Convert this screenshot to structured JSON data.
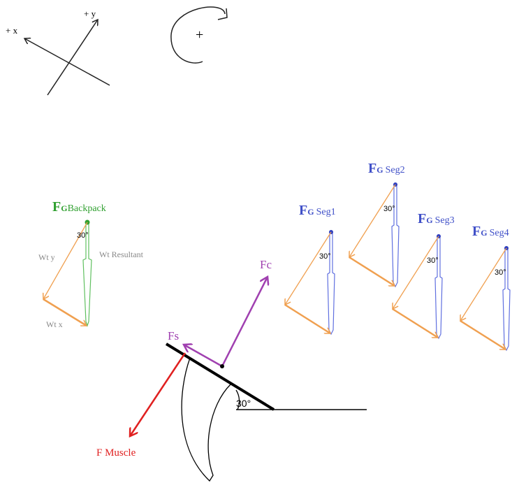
{
  "axes": {
    "x_label": "+ x",
    "y_label": "+ y",
    "moment_label": "+"
  },
  "backpack": {
    "f": "F",
    "g": "G",
    "name": "Backpack",
    "angle": "30°",
    "wt_y": "Wt y",
    "wt_resultant": "Wt Resultant",
    "wt_x": "Wt x"
  },
  "segments": [
    {
      "f": "F",
      "g": "G",
      "name": "Seg1",
      "angle": "30°"
    },
    {
      "f": "F",
      "g": "G",
      "name": "Seg2",
      "angle": "30°"
    },
    {
      "f": "F",
      "g": "G",
      "name": "Seg3",
      "angle": "30°"
    },
    {
      "f": "F",
      "g": "G",
      "name": "Seg4",
      "angle": "30°"
    }
  ],
  "forces": {
    "fc": "Fc",
    "fs": "Fs",
    "muscle": "F Muscle",
    "angle": "30°"
  }
}
